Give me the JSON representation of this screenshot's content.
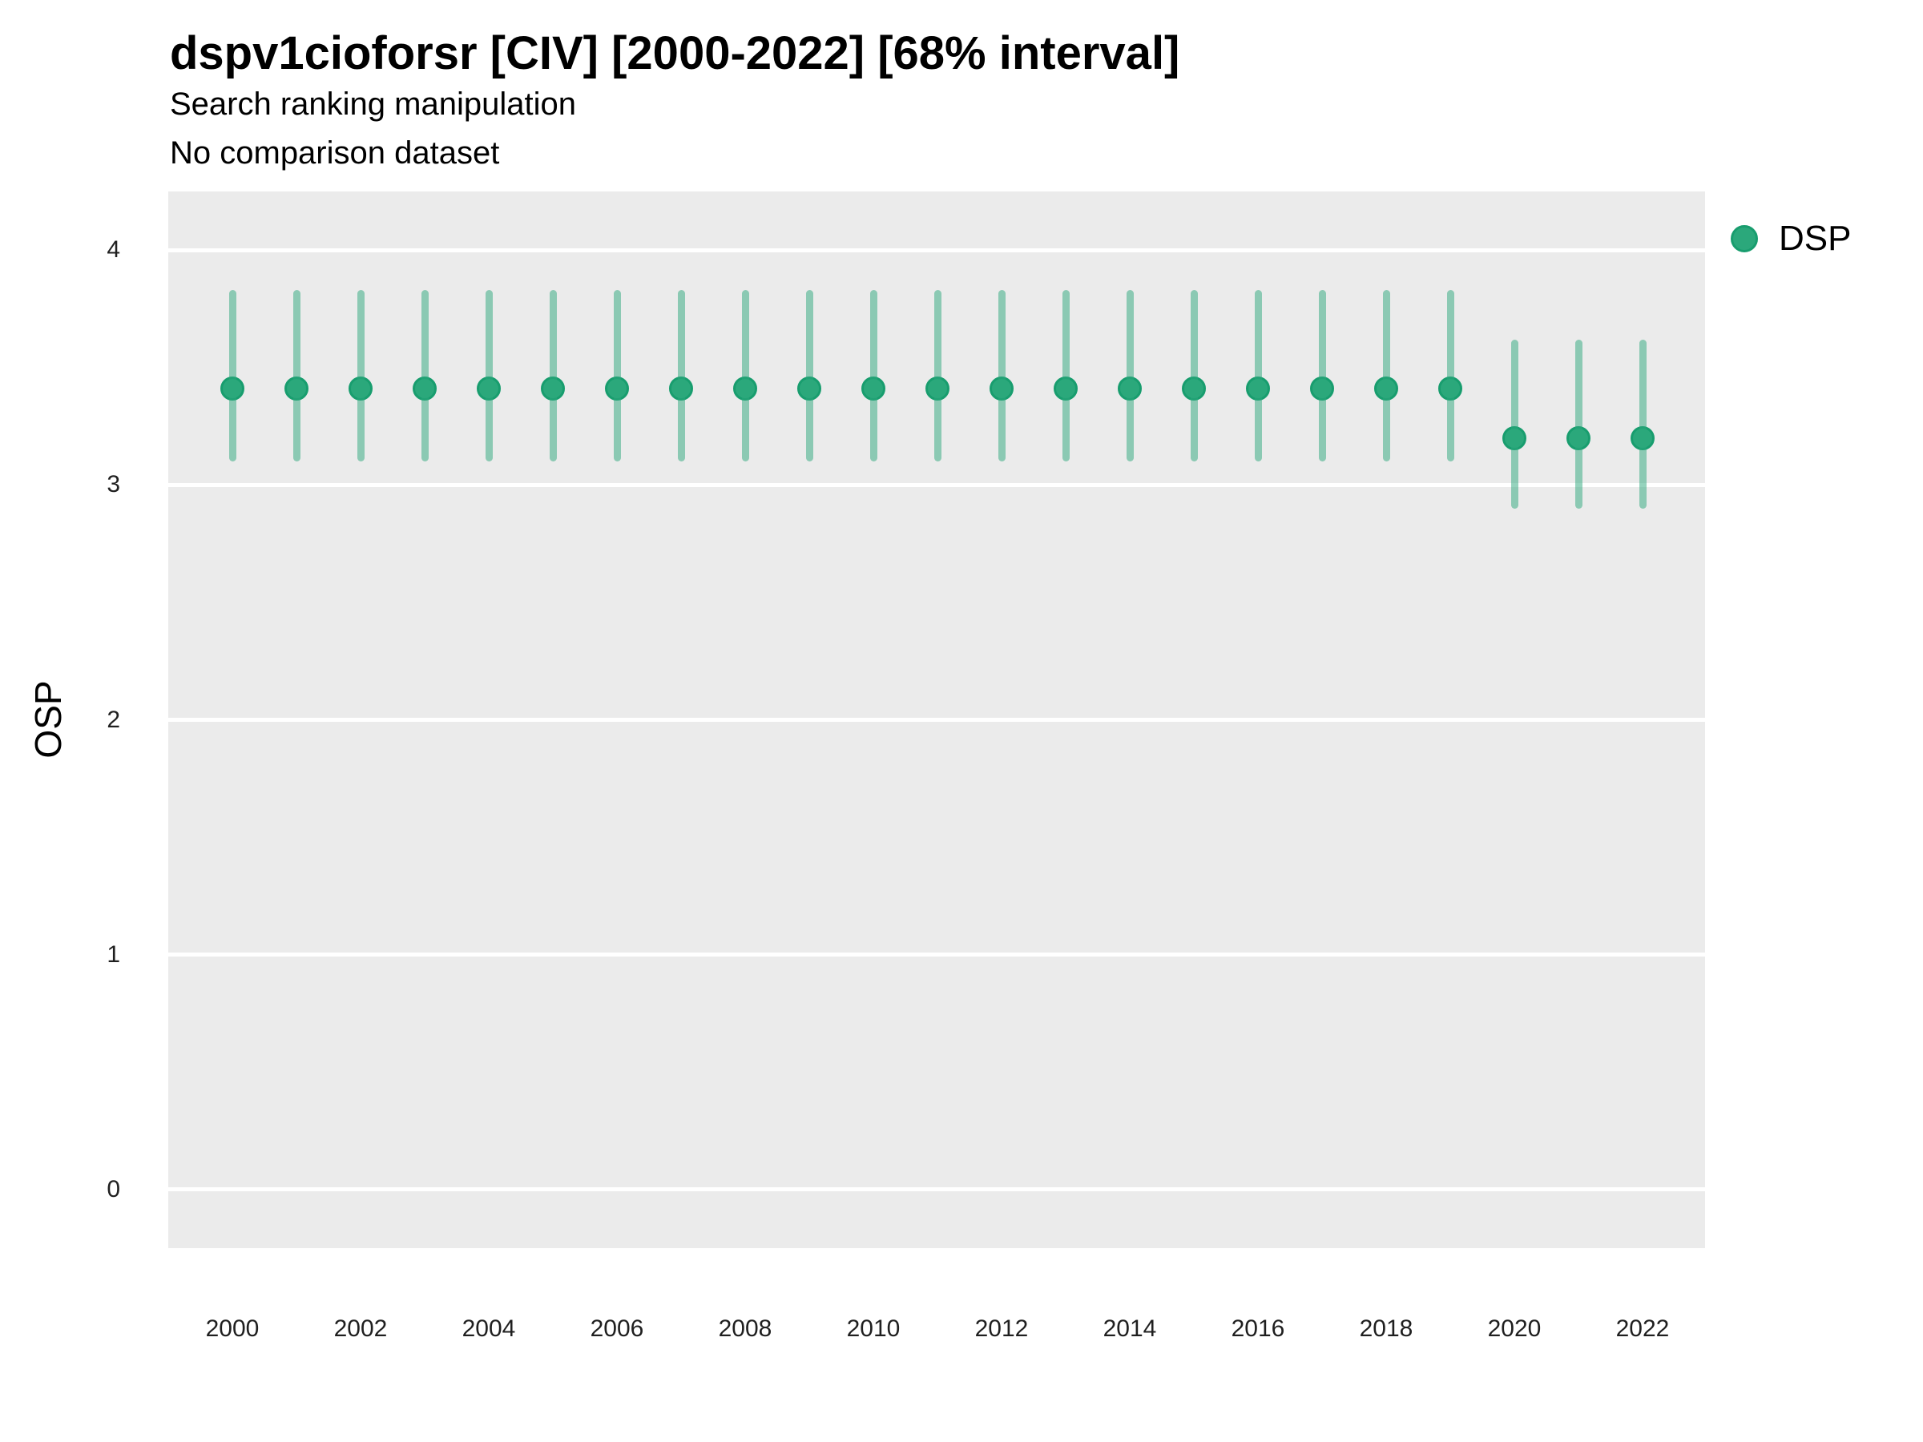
{
  "header": {
    "title": "dspv1cioforsr [CIV] [2000-2022] [68% interval]",
    "subtitle": "Search ranking manipulation",
    "note": "No comparison dataset"
  },
  "axes": {
    "y_title": "OSP",
    "y_tick_labels": [
      "0",
      "1",
      "2",
      "3",
      "4"
    ],
    "x_tick_labels": [
      "2000",
      "2002",
      "2004",
      "2006",
      "2008",
      "2010",
      "2012",
      "2014",
      "2016",
      "2018",
      "2020",
      "2022"
    ]
  },
  "legend": {
    "items": [
      {
        "label": "DSP",
        "marker": "circle",
        "color": "#2BA87B"
      }
    ]
  },
  "colors": {
    "panel_background": "#EBEBEB",
    "gridline": "#FFFFFF",
    "marker_fill": "#2BA87B",
    "marker_border": "#189D6E",
    "interval_bar": "rgba(43,168,123,0.5)",
    "text": "#000000"
  },
  "chart_data": {
    "type": "scatter",
    "title": "dspv1cioforsr [CIV] [2000-2022] [68% interval]",
    "subtitle": "Search ranking manipulation",
    "note": "No comparison dataset",
    "xlabel": "",
    "ylabel": "OSP",
    "interval": "68%",
    "legend_position": "right-top",
    "grid": "horizontal major gridlines, white on gray panel; no vertical gridlines",
    "ylim": [
      -0.25,
      4.25
    ],
    "yticks": [
      0,
      1,
      2,
      3,
      4
    ],
    "xticks": [
      2000,
      2002,
      2004,
      2006,
      2008,
      2010,
      2012,
      2014,
      2016,
      2018,
      2020,
      2022
    ],
    "x": [
      2000,
      2001,
      2002,
      2003,
      2004,
      2005,
      2006,
      2007,
      2008,
      2009,
      2010,
      2011,
      2012,
      2013,
      2014,
      2015,
      2016,
      2017,
      2018,
      2019,
      2020,
      2021,
      2022
    ],
    "series": [
      {
        "name": "DSP",
        "color": "#2BA87B",
        "mean": [
          3.41,
          3.41,
          3.41,
          3.41,
          3.41,
          3.41,
          3.41,
          3.41,
          3.41,
          3.41,
          3.41,
          3.41,
          3.41,
          3.41,
          3.41,
          3.41,
          3.41,
          3.41,
          3.41,
          3.41,
          3.2,
          3.2,
          3.2
        ],
        "lo": [
          3.1,
          3.1,
          3.1,
          3.1,
          3.1,
          3.1,
          3.1,
          3.1,
          3.1,
          3.1,
          3.1,
          3.1,
          3.1,
          3.1,
          3.1,
          3.1,
          3.1,
          3.1,
          3.1,
          3.1,
          2.9,
          2.9,
          2.9
        ],
        "hi": [
          3.83,
          3.83,
          3.83,
          3.83,
          3.83,
          3.83,
          3.83,
          3.83,
          3.83,
          3.83,
          3.83,
          3.83,
          3.83,
          3.83,
          3.83,
          3.83,
          3.83,
          3.83,
          3.83,
          3.83,
          3.62,
          3.62,
          3.62
        ]
      }
    ]
  }
}
